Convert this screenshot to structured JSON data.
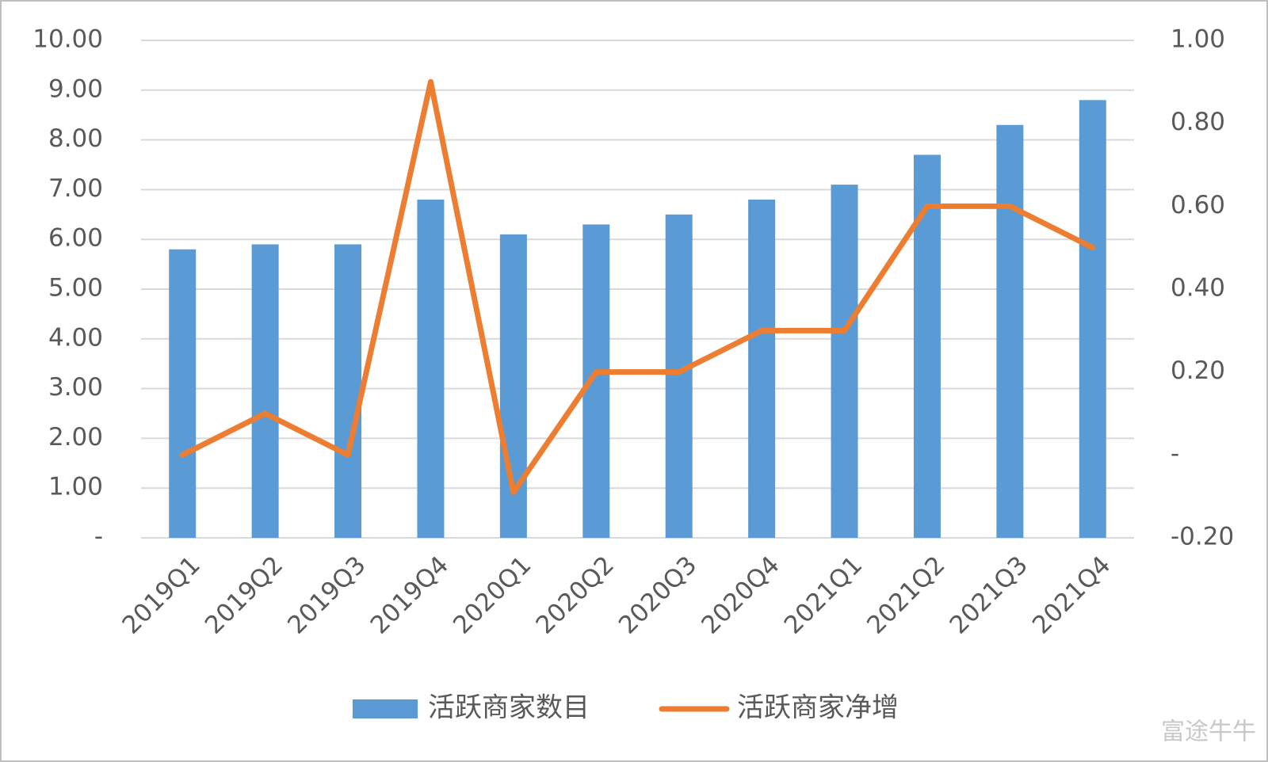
{
  "chart_data": {
    "type": "bar",
    "categories": [
      "2019Q1",
      "2019Q2",
      "2019Q3",
      "2019Q4",
      "2020Q1",
      "2020Q2",
      "2020Q3",
      "2020Q4",
      "2021Q1",
      "2021Q2",
      "2021Q3",
      "2021Q4"
    ],
    "series": [
      {
        "name": "活跃商家数目",
        "type": "bar",
        "color": "#5b9bd5",
        "values": [
          5.8,
          5.9,
          5.9,
          6.8,
          6.1,
          6.3,
          6.5,
          6.8,
          7.1,
          7.7,
          8.3,
          8.8
        ]
      },
      {
        "name": "活跃商家净增",
        "type": "line",
        "axis": "y2",
        "color": "#ed7d31",
        "values": [
          0.0,
          0.1,
          0.0,
          0.9,
          -0.09,
          0.2,
          0.2,
          0.3,
          0.3,
          0.6,
          0.6,
          0.5
        ]
      }
    ],
    "ylim": [
      0,
      10
    ],
    "yticks": [
      {
        "value": 0,
        "label": "-"
      },
      {
        "value": 1,
        "label": "1.00"
      },
      {
        "value": 2,
        "label": "2.00"
      },
      {
        "value": 3,
        "label": "3.00"
      },
      {
        "value": 4,
        "label": "4.00"
      },
      {
        "value": 5,
        "label": "5.00"
      },
      {
        "value": 6,
        "label": "6.00"
      },
      {
        "value": 7,
        "label": "7.00"
      },
      {
        "value": 8,
        "label": "8.00"
      },
      {
        "value": 9,
        "label": "9.00"
      },
      {
        "value": 10,
        "label": "10.00"
      }
    ],
    "y2lim": [
      -0.2,
      1.0
    ],
    "y2ticks": [
      {
        "value": -0.2,
        "label": "-0.20"
      },
      {
        "value": 0,
        "label": "-"
      },
      {
        "value": 0.2,
        "label": "0.20"
      },
      {
        "value": 0.4,
        "label": "0.40"
      },
      {
        "value": 0.6,
        "label": "0.60"
      },
      {
        "value": 0.8,
        "label": "0.80"
      },
      {
        "value": 1.0,
        "label": "1.00"
      }
    ],
    "grid": true,
    "legend": "bottom"
  },
  "watermark": "富途牛牛"
}
